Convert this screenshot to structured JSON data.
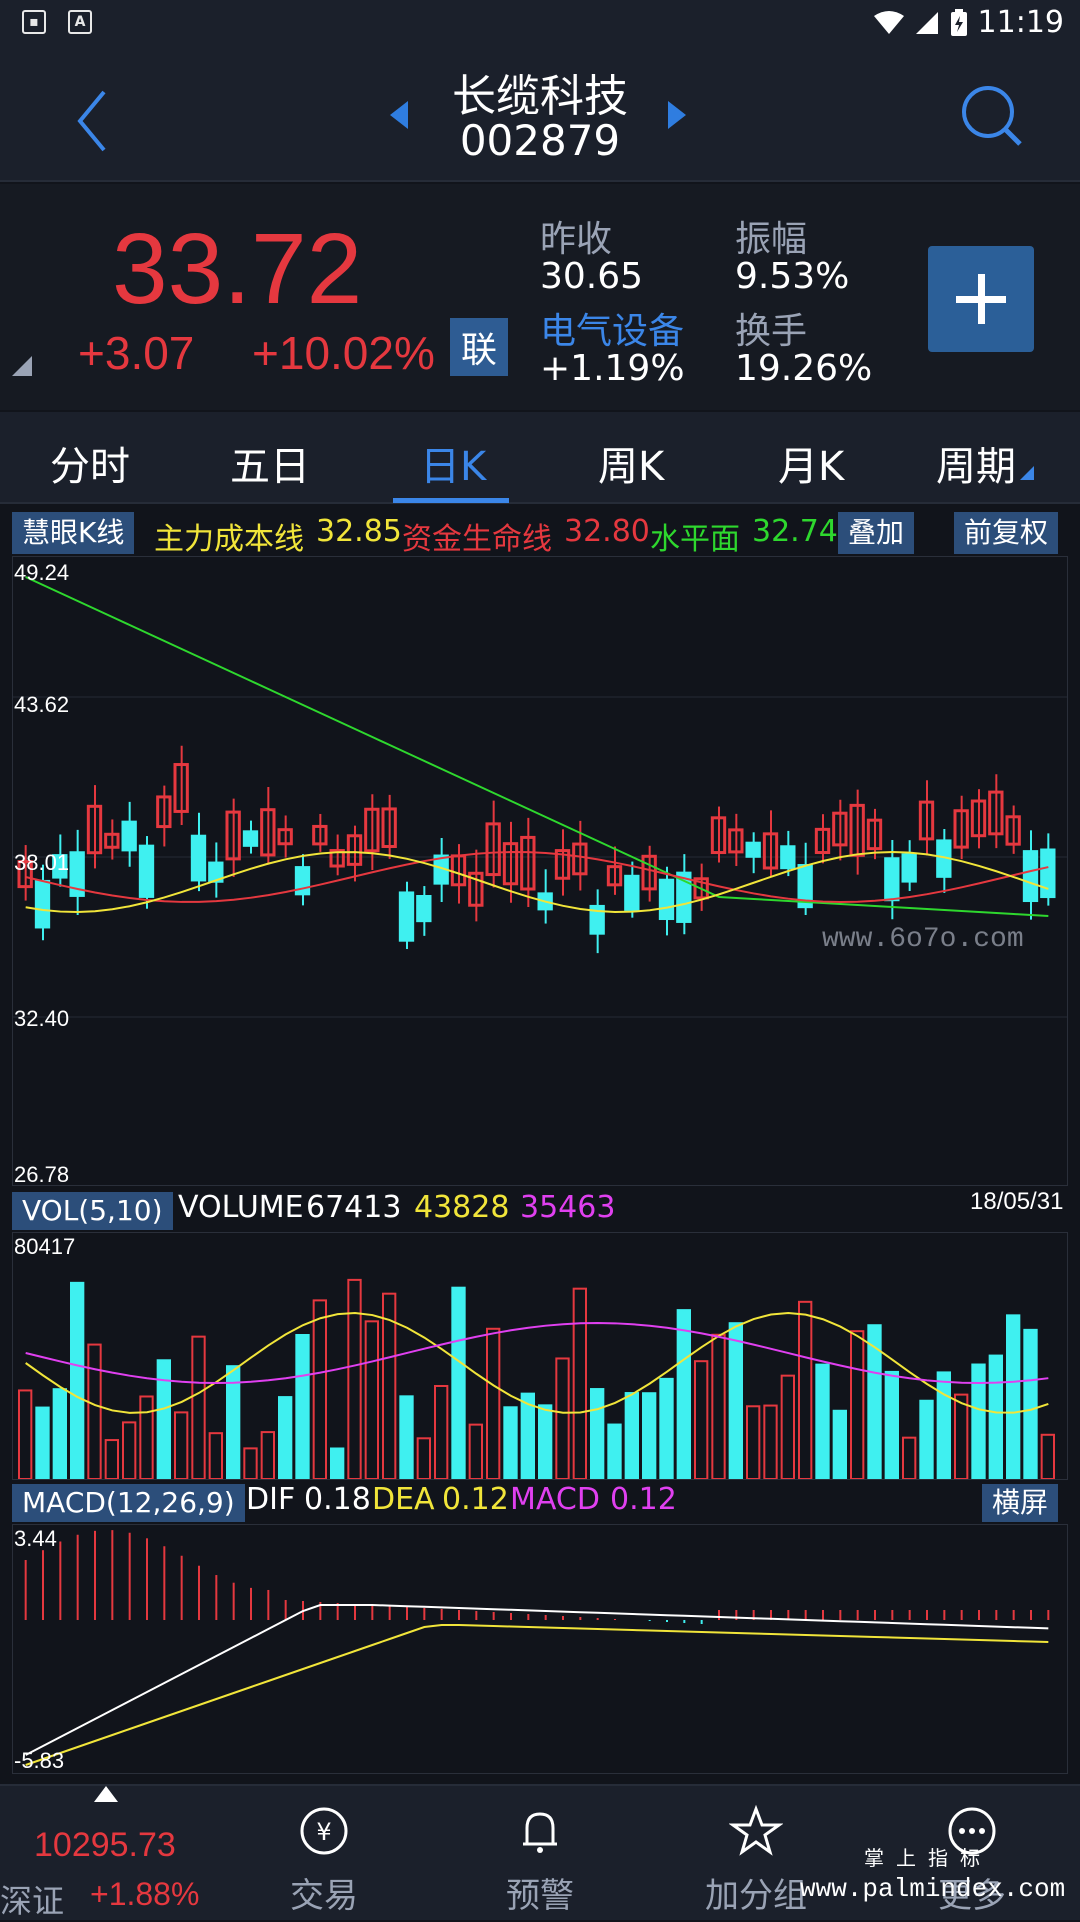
{
  "status_bar": {
    "time": "11:19"
  },
  "header": {
    "stock_name": "长缆科技",
    "stock_code": "002879"
  },
  "quote": {
    "price": "33.72",
    "change": "+3.07",
    "change_pct": "+10.02%",
    "link_badge": "联",
    "prev_close_label": "昨收",
    "prev_close": "30.65",
    "amplitude_label": "振幅",
    "amplitude": "9.53%",
    "sector_label": "电气设备",
    "sector_change": "+1.19%",
    "turnover_label": "换手",
    "turnover": "19.26%"
  },
  "tabs": [
    {
      "label": "分时"
    },
    {
      "label": "五日"
    },
    {
      "label": "日K",
      "active": true
    },
    {
      "label": "周K"
    },
    {
      "label": "月K"
    },
    {
      "label": "周期"
    }
  ],
  "indicators": {
    "kline_button": "慧眼K线",
    "cost_line_label": "主力成本线",
    "cost_line_value": "32.85",
    "life_line_label": "资金生命线",
    "life_line_value": "32.80",
    "level_label": "水平面",
    "level_value": "32.74",
    "overlay_button": "叠加",
    "adjust_button": "前复权"
  },
  "kline_axis": [
    "49.24",
    "43.62",
    "38.01",
    "32.40",
    "26.78"
  ],
  "date_label": "18/05/31",
  "volume": {
    "button": "VOL(5,10)",
    "label": "VOLUME",
    "value": "67413",
    "ma5": "43828",
    "ma10": "35463",
    "axis_max": "80417"
  },
  "macd": {
    "button": "MACD(12,26,9)",
    "dif_label": "DIF",
    "dif": "0.18",
    "dea_label": "DEA",
    "dea": "0.12",
    "macd_label": "MACD",
    "macd_value": "0.12",
    "landscape_button": "横屏",
    "axis_max": "3.44",
    "axis_min": "-5.83"
  },
  "bottom_nav": {
    "index_value": "10295.73",
    "index_name": "深证",
    "index_pct": "+1.88%",
    "items": [
      {
        "label": "交易"
      },
      {
        "label": "预警"
      },
      {
        "label": "加分组"
      },
      {
        "label": "更多"
      }
    ]
  },
  "watermarks": {
    "chart": "www.6o7o.com",
    "corner_top": "掌 上 指 标",
    "corner_bottom": "www.palmindex.com"
  },
  "colors": {
    "up": "#e5383f",
    "down": "#3ff0f0",
    "accent": "#3b86e8",
    "ma_yellow": "#f1e53a",
    "ma_green": "#2ed82e",
    "ma_magenta": "#e040f0"
  }
}
